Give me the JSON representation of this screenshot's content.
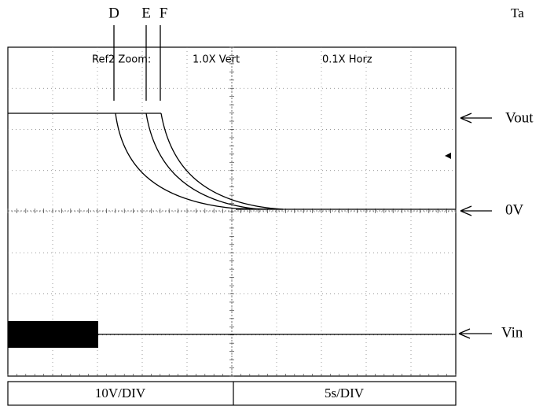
{
  "markers": [
    "D",
    "E",
    "F"
  ],
  "corner_label": "Ta",
  "header": {
    "ref": "Ref2 Zoom:",
    "vert": "1.0X Vert",
    "horz": "0.1X Horz"
  },
  "right_labels": {
    "vout": "Vout",
    "zero": "0V",
    "vin": "Vin"
  },
  "footer": {
    "volts": "10V/DIV",
    "time": "5s/DIV"
  }
}
